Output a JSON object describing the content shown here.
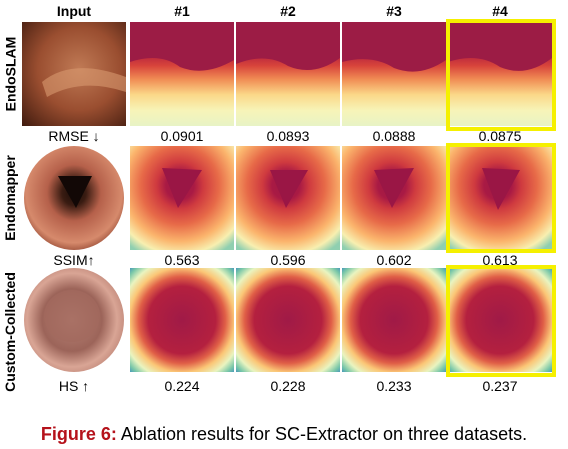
{
  "columns": [
    "Input",
    "#1",
    "#2",
    "#3",
    "#4"
  ],
  "rows": [
    {
      "dataset": "EndoSLAM",
      "metric_label": "RMSE ↓",
      "values": [
        "0.0901",
        "0.0893",
        "0.0888",
        "0.0875"
      ]
    },
    {
      "dataset": "Endomapper",
      "metric_label": "SSIM↑",
      "values": [
        "0.563",
        "0.596",
        "0.602",
        "0.613"
      ]
    },
    {
      "dataset": "Custom-Collected",
      "metric_label": "HS ↑",
      "values": [
        "0.224",
        "0.228",
        "0.233",
        "0.237"
      ]
    }
  ],
  "highlight_color": "#f5f000",
  "caption": {
    "prefix": "Figure 6:",
    "text": " Ablation results for SC-Extractor on three datasets."
  }
}
